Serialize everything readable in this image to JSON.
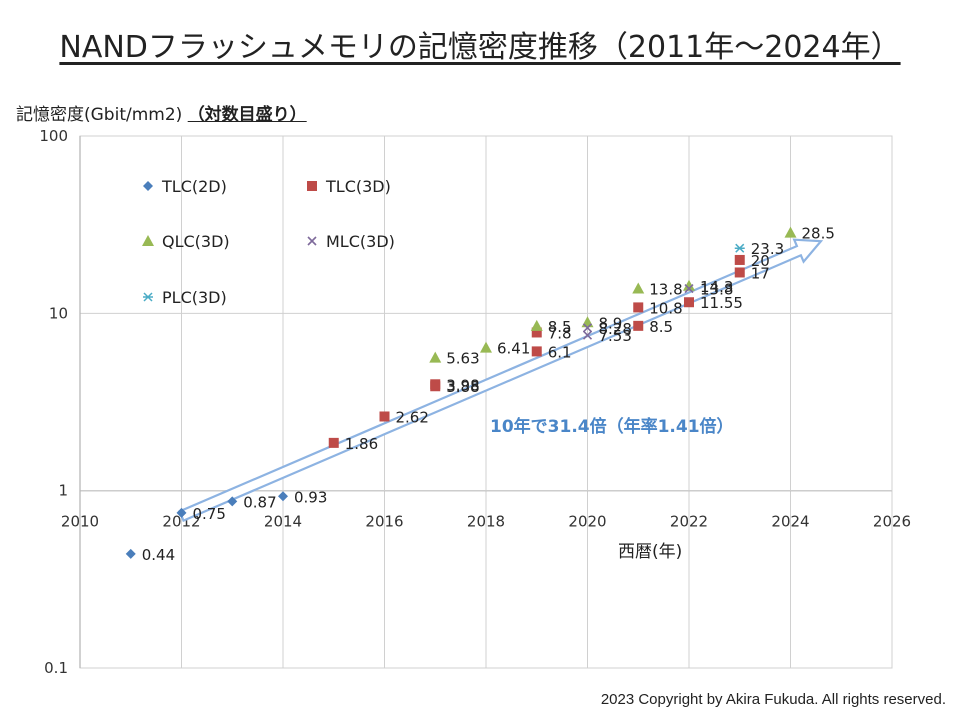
{
  "title": "NANDフラッシュメモリの記憶密度推移（2011年～2024年）",
  "ylabel_prefix": "記憶密度(Gbit/mm2) ",
  "ylabel_scale": "（対数目盛り）",
  "xlabel": "西暦(年)",
  "copyright": "2023 Copyright by Akira Fukuda. All rights reserved.",
  "annotation": "10年で31.4倍（年率1.41倍）",
  "chart_data": {
    "type": "scatter",
    "title": "NANDフラッシュメモリの記憶密度推移（2011年～2024年）",
    "xlabel": "西暦(年)",
    "ylabel": "記憶密度(Gbit/mm2)",
    "y_scale": "log",
    "xlim": [
      2010,
      2026
    ],
    "ylim": [
      0.1,
      100
    ],
    "x_ticks": [
      "2010",
      "2012",
      "2014",
      "2016",
      "2018",
      "2020",
      "2022",
      "2024",
      "2026"
    ],
    "y_ticks": [
      "0.1",
      "1",
      "10",
      "100"
    ],
    "grid": true,
    "legend_position": "top-left",
    "series": [
      {
        "name": "TLC(2D)",
        "marker": "diamond",
        "color": "#4a7ebb",
        "points": [
          {
            "x": 2011,
            "y": 0.44,
            "label": "0.44"
          },
          {
            "x": 2012,
            "y": 0.75,
            "label": "0.75"
          },
          {
            "x": 2013,
            "y": 0.87,
            "label": "0.87"
          },
          {
            "x": 2014,
            "y": 0.93,
            "label": "0.93"
          }
        ]
      },
      {
        "name": "TLC(3D)",
        "marker": "square",
        "color": "#be4b48",
        "points": [
          {
            "x": 2015,
            "y": 1.86,
            "label": "1.86"
          },
          {
            "x": 2016,
            "y": 2.62,
            "label": "2.62"
          },
          {
            "x": 2017,
            "y": 3.88,
            "label": "3.88"
          },
          {
            "x": 2017,
            "y": 3.98,
            "label": "3.98"
          },
          {
            "x": 2019,
            "y": 6.1,
            "label": "6.1"
          },
          {
            "x": 2019,
            "y": 7.8,
            "label": "7.8"
          },
          {
            "x": 2021,
            "y": 8.5,
            "label": "8.5"
          },
          {
            "x": 2021,
            "y": 10.8,
            "label": "10.8"
          },
          {
            "x": 2022,
            "y": 11.55,
            "label": "11.55"
          },
          {
            "x": 2023,
            "y": 17,
            "label": "17"
          },
          {
            "x": 2023,
            "y": 20,
            "label": "20"
          }
        ]
      },
      {
        "name": "QLC(3D)",
        "marker": "triangle",
        "color": "#98b954",
        "points": [
          {
            "x": 2017,
            "y": 5.63,
            "label": "5.63"
          },
          {
            "x": 2018,
            "y": 6.41,
            "label": "6.41"
          },
          {
            "x": 2019,
            "y": 8.5,
            "label": "8.5"
          },
          {
            "x": 2020,
            "y": 8.9,
            "label": "8.9"
          },
          {
            "x": 2021,
            "y": 13.8,
            "label": "13.8"
          },
          {
            "x": 2022,
            "y": 14.3,
            "label": "14.3"
          },
          {
            "x": 2024,
            "y": 28.5,
            "label": "28.5"
          }
        ]
      },
      {
        "name": "MLC(3D)",
        "marker": "x",
        "color": "#7e6a9b",
        "points": [
          {
            "x": 2020,
            "y": 7.53,
            "label": "7.53"
          },
          {
            "x": 2020,
            "y": 8.28,
            "label": "8.28"
          },
          {
            "x": 2022,
            "y": 13.8,
            "label": "13.8"
          }
        ]
      },
      {
        "name": "PLC(3D)",
        "marker": "star",
        "color": "#4bacc6",
        "points": [
          {
            "x": 2023,
            "y": 23.3,
            "label": "23.3"
          }
        ]
      }
    ],
    "trend_arrow": {
      "x": [
        2012,
        2024.6
      ],
      "y": [
        0.72,
        25.5
      ],
      "label": "10年で31.4倍（年率1.41倍）",
      "color": "#8db3e2"
    }
  }
}
